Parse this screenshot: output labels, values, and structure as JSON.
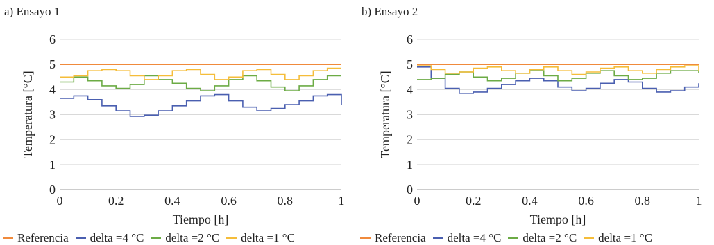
{
  "chart_data": [
    {
      "type": "line",
      "title": "a) Ensayo 1",
      "xlabel": "Tiempo [h]",
      "ylabel": "Temperatura [°C]",
      "xlim": [
        0,
        1
      ],
      "ylim": [
        0,
        6
      ],
      "xticks": [
        "0",
        "0.2",
        "0.4",
        "0.6",
        "0.8",
        "1"
      ],
      "yticks": [
        "0",
        "1",
        "2",
        "3",
        "4",
        "5",
        "6"
      ],
      "grid": "horizontal",
      "legend_position": "bottom",
      "x": [
        0,
        0.05,
        0.1,
        0.15,
        0.2,
        0.25,
        0.3,
        0.35,
        0.4,
        0.45,
        0.5,
        0.55,
        0.6,
        0.65,
        0.7,
        0.75,
        0.8,
        0.85,
        0.9,
        0.95,
        1.0
      ],
      "series": [
        {
          "name": "Referencia",
          "color": "#f08a3c",
          "values": [
            5,
            5,
            5,
            5,
            5,
            5,
            5,
            5,
            5,
            5,
            5,
            5,
            5,
            5,
            5,
            5,
            5,
            5,
            5,
            5,
            5
          ]
        },
        {
          "name": "delta =4 °C",
          "color": "#4a5fb0",
          "values": [
            3.65,
            3.75,
            3.6,
            3.35,
            3.15,
            2.93,
            2.98,
            3.15,
            3.35,
            3.55,
            3.75,
            3.8,
            3.55,
            3.3,
            3.15,
            3.25,
            3.4,
            3.55,
            3.75,
            3.8,
            3.4
          ]
        },
        {
          "name": "delta =2 °C",
          "color": "#6cab45",
          "values": [
            4.3,
            4.5,
            4.35,
            4.15,
            4.05,
            4.2,
            4.55,
            4.4,
            4.25,
            4.05,
            3.95,
            4.15,
            4.4,
            4.55,
            4.35,
            4.1,
            3.95,
            4.15,
            4.4,
            4.55,
            4.55
          ]
        },
        {
          "name": "delta =1 °C",
          "color": "#f5bd3a",
          "values": [
            4.5,
            4.55,
            4.75,
            4.8,
            4.75,
            4.55,
            4.4,
            4.55,
            4.75,
            4.8,
            4.6,
            4.4,
            4.5,
            4.75,
            4.8,
            4.6,
            4.4,
            4.55,
            4.75,
            4.85,
            4.85
          ]
        }
      ]
    },
    {
      "type": "line",
      "title": "b) Ensayo 2",
      "xlabel": "Tiempo [h]",
      "ylabel": "Temperatura [°C]",
      "xlim": [
        0,
        1
      ],
      "ylim": [
        0,
        6
      ],
      "xticks": [
        "0",
        "0.2",
        "0.4",
        "0.6",
        "0.8",
        "1"
      ],
      "yticks": [
        "0",
        "1",
        "2",
        "3",
        "4",
        "5",
        "6"
      ],
      "grid": "horizontal",
      "legend_position": "bottom",
      "x": [
        0,
        0.05,
        0.1,
        0.15,
        0.2,
        0.25,
        0.3,
        0.35,
        0.4,
        0.45,
        0.5,
        0.55,
        0.6,
        0.65,
        0.7,
        0.75,
        0.8,
        0.85,
        0.9,
        0.95,
        1.0
      ],
      "series": [
        {
          "name": "Referencia",
          "color": "#f08a3c",
          "values": [
            5,
            5,
            5,
            5,
            5,
            5,
            5,
            5,
            5,
            5,
            5,
            5,
            5,
            5,
            5,
            5,
            5,
            5,
            5,
            5,
            5
          ]
        },
        {
          "name": "delta =4 °C",
          "color": "#4a5fb0",
          "values": [
            4.9,
            4.45,
            4.05,
            3.85,
            3.9,
            4.05,
            4.2,
            4.35,
            4.45,
            4.35,
            4.1,
            3.95,
            4.05,
            4.25,
            4.4,
            4.3,
            4.05,
            3.9,
            3.95,
            4.1,
            4.25
          ]
        },
        {
          "name": "delta =2 °C",
          "color": "#6cab45",
          "values": [
            4.4,
            4.45,
            4.6,
            4.7,
            4.5,
            4.35,
            4.45,
            4.65,
            4.75,
            4.55,
            4.35,
            4.45,
            4.65,
            4.75,
            4.55,
            4.4,
            4.45,
            4.65,
            4.75,
            4.75,
            4.65
          ]
        },
        {
          "name": "delta =1 °C",
          "color": "#f5bd3a",
          "values": [
            4.95,
            4.8,
            4.65,
            4.7,
            4.85,
            4.9,
            4.75,
            4.65,
            4.8,
            4.9,
            4.75,
            4.6,
            4.7,
            4.85,
            4.9,
            4.75,
            4.65,
            4.8,
            4.9,
            4.95,
            4.75
          ]
        }
      ]
    }
  ]
}
